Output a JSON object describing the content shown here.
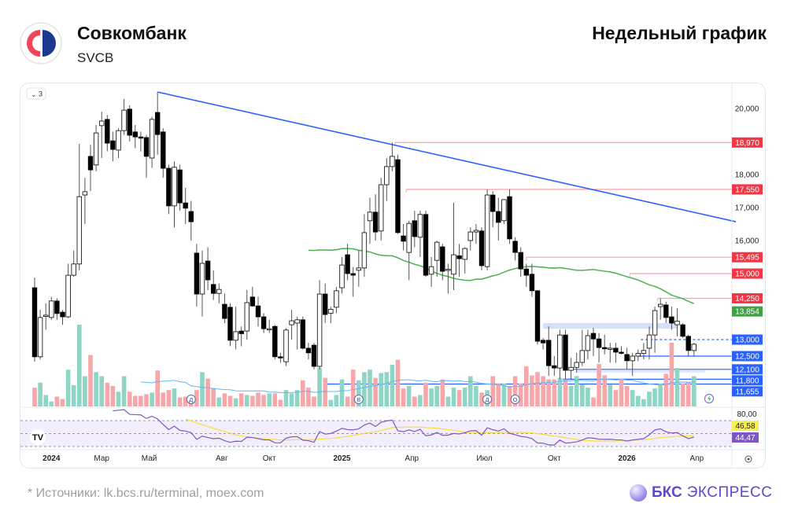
{
  "header": {
    "company": "Совкомбанк",
    "ticker": "SVCB",
    "chart_title": "Недельный график"
  },
  "footer": {
    "sources": "*  Источники: lk.bcs.ru/terminal, moex.com",
    "brand_bold": "БКС",
    "brand_rest": "ЭКСПРЕСС"
  },
  "toolbar": {
    "collapse_label": "3"
  },
  "colors": {
    "up_body": "#ffffff",
    "down_body": "#000000",
    "vol_up": "#8fd5c5",
    "vol_down": "#f7a7aa",
    "resistance": "#f23645",
    "support": "#2962ff",
    "ma": "#4caf50",
    "rsi": "#7e57c2",
    "rsi_ma": "#f5e13c",
    "trend": "#2962ff"
  },
  "chart_data": {
    "type": "candlestick",
    "title": "Недельный график",
    "timeframe": "weekly",
    "ylim": [
      11000,
      20700
    ],
    "y_ticks": [
      {
        "value": 20000,
        "label": "20,000"
      },
      {
        "value": 18000,
        "label": "18,000"
      },
      {
        "value": 17000,
        "label": "17,000"
      },
      {
        "value": 16000,
        "label": "16,000"
      }
    ],
    "x_ticks": [
      {
        "index": 3,
        "label": "2024",
        "bold": true
      },
      {
        "index": 12,
        "label": "Мар"
      },
      {
        "index": 20.5,
        "label": "Май"
      },
      {
        "index": 33.5,
        "label": "Авг"
      },
      {
        "index": 42,
        "label": "Окт"
      },
      {
        "index": 55,
        "label": "2025",
        "bold": true
      },
      {
        "index": 67.5,
        "label": "Апр"
      },
      {
        "index": 80.5,
        "label": "Июл"
      },
      {
        "index": 93,
        "label": "Окт"
      },
      {
        "index": 106,
        "label": "2026",
        "bold": true
      },
      {
        "index": 118.5,
        "label": "Апр"
      }
    ],
    "ohlc": [
      [
        14570,
        14880,
        12330,
        12480
      ],
      [
        12480,
        13900,
        12400,
        13670
      ],
      [
        13700,
        14100,
        13300,
        13740
      ],
      [
        13670,
        14300,
        13600,
        14170
      ],
      [
        14170,
        14250,
        13600,
        13790
      ],
      [
        13830,
        13900,
        13450,
        13690
      ],
      [
        13690,
        15300,
        13650,
        14950
      ],
      [
        14950,
        15700,
        14900,
        15290
      ],
      [
        15290,
        18930,
        15100,
        17330
      ],
      [
        17380,
        17900,
        16500,
        17480
      ],
      [
        18550,
        18900,
        17500,
        18140
      ],
      [
        18290,
        19500,
        18100,
        19260
      ],
      [
        19480,
        19900,
        18500,
        19620
      ],
      [
        19670,
        19800,
        18700,
        18950
      ],
      [
        19020,
        19300,
        18400,
        18760
      ],
      [
        18740,
        19400,
        18500,
        19330
      ],
      [
        19330,
        20290,
        19200,
        19950
      ],
      [
        19980,
        20100,
        19000,
        19190
      ],
      [
        19290,
        19500,
        18800,
        19140
      ],
      [
        19140,
        19300,
        18700,
        19100
      ],
      [
        19120,
        19200,
        17900,
        18550
      ],
      [
        18500,
        19750,
        18200,
        19670
      ],
      [
        19880,
        20500,
        18600,
        19210
      ],
      [
        19290,
        19400,
        17900,
        18190
      ],
      [
        18190,
        18300,
        16800,
        17050
      ],
      [
        17050,
        18400,
        16400,
        18220
      ],
      [
        18140,
        18300,
        16900,
        17140
      ],
      [
        17140,
        17600,
        16500,
        16980
      ],
      [
        16880,
        17200,
        16000,
        16570
      ],
      [
        15620,
        15900,
        14000,
        14380
      ],
      [
        14380,
        15700,
        13700,
        15310
      ],
      [
        15380,
        15800,
        14500,
        14810
      ],
      [
        14670,
        15100,
        14200,
        14400
      ],
      [
        14400,
        14700,
        14100,
        14520
      ],
      [
        14070,
        14400,
        13500,
        13640
      ],
      [
        13980,
        14100,
        12800,
        12980
      ],
      [
        12980,
        14000,
        12700,
        13240
      ],
      [
        13260,
        13400,
        12800,
        13180
      ],
      [
        13260,
        14500,
        13000,
        14120
      ],
      [
        14290,
        14600,
        14000,
        14020
      ],
      [
        14020,
        14300,
        13400,
        13690
      ],
      [
        13690,
        13800,
        13200,
        13330
      ],
      [
        13330,
        13600,
        13200,
        13330
      ],
      [
        13400,
        13450,
        12400,
        12480
      ],
      [
        12480,
        12600,
        12300,
        12450
      ],
      [
        12330,
        13350,
        12200,
        13290
      ],
      [
        13450,
        13900,
        13000,
        13570
      ],
      [
        13500,
        13700,
        12700,
        13600
      ],
      [
        13600,
        13700,
        12700,
        12740
      ],
      [
        12740,
        12900,
        12400,
        12600
      ],
      [
        12830,
        12900,
        12100,
        12190
      ],
      [
        12190,
        14800,
        12100,
        14380
      ],
      [
        14380,
        14700,
        13500,
        13760
      ],
      [
        13800,
        14000,
        13500,
        13920
      ],
      [
        13980,
        14600,
        13800,
        14480
      ],
      [
        14570,
        15500,
        14400,
        15260
      ],
      [
        15570,
        15900,
        14800,
        15000
      ],
      [
        15000,
        15200,
        14300,
        14950
      ],
      [
        15100,
        15700,
        14600,
        15170
      ],
      [
        15170,
        16800,
        14900,
        16240
      ],
      [
        16600,
        17300,
        15900,
        16860
      ],
      [
        16860,
        17400,
        16000,
        16260
      ],
      [
        16290,
        17900,
        16000,
        17690
      ],
      [
        17690,
        18500,
        17200,
        18240
      ],
      [
        18240,
        18970,
        18100,
        18550
      ],
      [
        18450,
        18600,
        16200,
        16240
      ],
      [
        16140,
        16500,
        15700,
        15980
      ],
      [
        15640,
        16600,
        14800,
        16520
      ],
      [
        16600,
        16900,
        15800,
        16120
      ],
      [
        16100,
        16900,
        15500,
        16790
      ],
      [
        16790,
        16900,
        14900,
        14950
      ],
      [
        14980,
        15500,
        14600,
        15210
      ],
      [
        15400,
        16000,
        14900,
        15950
      ],
      [
        15810,
        15900,
        14800,
        15070
      ],
      [
        15100,
        15300,
        14400,
        15130
      ],
      [
        14980,
        17150,
        14500,
        15570
      ],
      [
        15540,
        15900,
        14900,
        15450
      ],
      [
        15430,
        15800,
        15000,
        15760
      ],
      [
        16000,
        16400,
        15700,
        16260
      ],
      [
        16260,
        16500,
        15900,
        16310
      ],
      [
        16290,
        16400,
        15100,
        15240
      ],
      [
        15210,
        17550,
        15100,
        17380
      ],
      [
        17380,
        17500,
        16400,
        16880
      ],
      [
        16880,
        17300,
        16000,
        16550
      ],
      [
        16600,
        17250,
        16500,
        17240
      ],
      [
        17330,
        17550,
        15900,
        16050
      ],
      [
        15980,
        16100,
        15400,
        15640
      ],
      [
        15640,
        15800,
        14900,
        15140
      ],
      [
        15140,
        15300,
        14600,
        14950
      ],
      [
        14980,
        15300,
        14300,
        14480
      ],
      [
        14480,
        14500,
        12850,
        12950
      ],
      [
        12980,
        13050,
        12700,
        12900
      ],
      [
        12980,
        13400,
        11900,
        12210
      ],
      [
        12210,
        12500,
        11900,
        12140
      ],
      [
        12140,
        13300,
        11800,
        13140
      ],
      [
        13140,
        13300,
        11800,
        12070
      ],
      [
        12070,
        12450,
        11800,
        12160
      ],
      [
        12160,
        12600,
        12000,
        12310
      ],
      [
        12310,
        13300,
        12200,
        12670
      ],
      [
        12670,
        13300,
        12400,
        13120
      ],
      [
        13190,
        13350,
        12500,
        13020
      ],
      [
        13020,
        13200,
        12300,
        12760
      ],
      [
        12760,
        13150,
        12550,
        12720
      ],
      [
        12720,
        12900,
        12300,
        12740
      ],
      [
        12740,
        12900,
        12300,
        12620
      ],
      [
        12620,
        12800,
        12550,
        12600
      ],
      [
        12550,
        12750,
        12100,
        12360
      ],
      [
        12360,
        12600,
        11900,
        12500
      ],
      [
        12500,
        12700,
        12350,
        12580
      ],
      [
        12580,
        12900,
        12400,
        12670
      ],
      [
        12740,
        13400,
        12400,
        13140
      ],
      [
        13140,
        14000,
        12600,
        13880
      ],
      [
        14000,
        14250,
        13600,
        14070
      ],
      [
        14050,
        14150,
        13500,
        13670
      ],
      [
        13690,
        14000,
        13300,
        13500
      ],
      [
        13450,
        13950,
        13100,
        13560
      ],
      [
        13450,
        13500,
        13050,
        13100
      ],
      [
        13100,
        13150,
        12500,
        12670
      ],
      [
        12670,
        12900,
        12500,
        12860
      ]
    ],
    "volume": [
      23,
      29,
      14,
      6,
      12,
      9,
      45,
      26,
      100,
      37,
      63,
      42,
      37,
      29,
      25,
      18,
      37,
      18,
      13,
      13,
      15,
      17,
      44,
      17,
      20,
      22,
      11,
      12,
      12,
      20,
      42,
      34,
      22,
      11,
      16,
      13,
      10,
      16,
      14,
      13,
      17,
      14,
      16,
      16,
      8,
      20,
      16,
      20,
      32,
      23,
      12,
      47,
      35,
      8,
      14,
      33,
      12,
      45,
      32,
      42,
      45,
      35,
      41,
      42,
      51,
      57,
      22,
      25,
      12,
      14,
      29,
      22,
      25,
      33,
      12,
      23,
      20,
      23,
      37,
      25,
      17,
      20,
      37,
      28,
      28,
      25,
      37,
      28,
      49,
      38,
      42,
      37,
      33,
      33,
      35,
      33,
      25,
      37,
      27,
      23,
      11,
      52,
      38,
      27,
      20,
      34,
      25,
      20,
      13,
      9,
      18,
      22,
      28,
      40,
      78,
      47,
      28,
      30,
      37
    ],
    "moving_average": {
      "period": 50,
      "last_label": "13,854"
    },
    "volume_ma_period": 20,
    "trendline": {
      "from": {
        "index": 22,
        "price": 20500
      },
      "to": {
        "index": 125.5,
        "price": 16570
      }
    },
    "levels": [
      {
        "price": 18970,
        "label": "18,970",
        "kind": "resistance",
        "start_index": 64.5
      },
      {
        "price": 17550,
        "label": "17,550",
        "kind": "resistance",
        "start_index": 66.5
      },
      {
        "price": 15495,
        "label": "15,495",
        "kind": "resistance",
        "start_index": 88
      },
      {
        "price": 15000,
        "label": "15,000",
        "kind": "resistance",
        "start_index": 106.5
      },
      {
        "price": 14250,
        "label": "14,250",
        "kind": "resistance",
        "start_index": 111.5
      },
      {
        "price": 13000,
        "label": "13,000",
        "kind": "support",
        "start_index": 108.5,
        "dashed": true
      },
      {
        "price": 12500,
        "label": "12,500",
        "kind": "support",
        "start_index": 108
      },
      {
        "price": 12100,
        "label": "12,100",
        "kind": "support",
        "start_index": 96.5
      },
      {
        "price": 11800,
        "label": "11,800",
        "kind": "support",
        "start_index": 94.5
      },
      {
        "price": 11655,
        "label": "11,655",
        "kind": "support",
        "start_index": 52
      }
    ],
    "zones": [
      {
        "from_price": 13330,
        "to_price": 13500,
        "start_index": 91,
        "end_index": 115
      }
    ],
    "events": [
      {
        "index": 28,
        "label": "Д"
      },
      {
        "index": 58,
        "label": "В"
      },
      {
        "index": 81,
        "label": "Д"
      },
      {
        "index": 86,
        "label": "О"
      }
    ],
    "rsi": {
      "period": 14,
      "ma_period": 14,
      "scale_label": "80,00",
      "ma_label": "46,58",
      "value_label": "44,47",
      "bands": [
        70,
        50,
        30
      ]
    }
  }
}
